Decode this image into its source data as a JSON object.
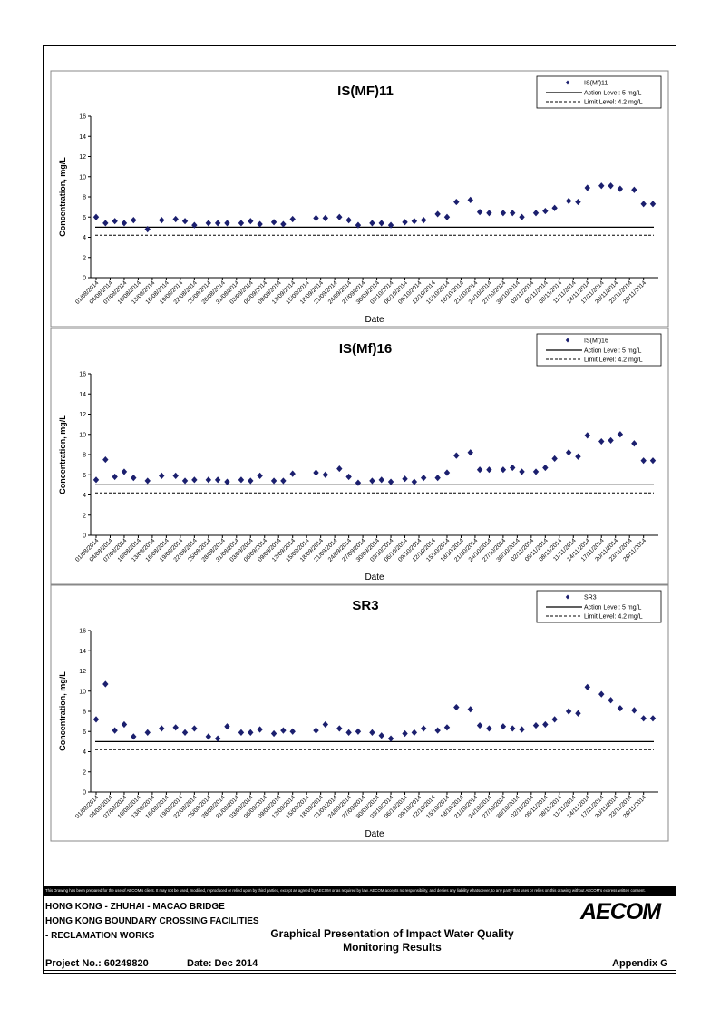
{
  "chart_data": [
    {
      "type": "scatter",
      "title": "IS(MF)11",
      "xlabel": "Date",
      "ylabel": "Concentration, mg/L",
      "ylim": [
        0,
        16
      ],
      "yticks": [
        0,
        2,
        4,
        6,
        8,
        10,
        12,
        14,
        16
      ],
      "x_tick_labels": [
        "01/08/2014",
        "04/08/2014",
        "07/08/2014",
        "10/08/2014",
        "13/08/2014",
        "16/08/2014",
        "19/08/2014",
        "22/08/2014",
        "25/08/2014",
        "28/08/2014",
        "31/08/2014",
        "03/09/2014",
        "06/09/2014",
        "09/09/2014",
        "12/09/2014",
        "15/09/2014",
        "18/09/2014",
        "21/09/2014",
        "24/09/2014",
        "27/09/2014",
        "30/09/2014",
        "03/10/2014",
        "06/10/2014",
        "09/10/2014",
        "12/10/2014",
        "15/10/2014",
        "18/10/2014",
        "21/10/2014",
        "24/10/2014",
        "27/10/2014",
        "30/10/2014",
        "02/11/2014",
        "05/11/2014",
        "08/11/2014",
        "11/11/2014",
        "14/11/2014",
        "17/11/2014",
        "20/11/2014",
        "23/11/2014",
        "26/11/2014"
      ],
      "legend": "top-right",
      "legend_items": [
        "IS(Mf)11",
        "Action Level: 5 mg/L",
        "Limit Level: 4.2 mg/L"
      ],
      "action_level": 5,
      "limit_level": 4.2,
      "series": [
        {
          "name": "IS(Mf)11",
          "x": [
            "01/08/2014",
            "03/08/2014",
            "05/08/2014",
            "07/08/2014",
            "09/08/2014",
            "12/08/2014",
            "15/08/2014",
            "18/08/2014",
            "20/08/2014",
            "22/08/2014",
            "25/08/2014",
            "27/08/2014",
            "29/08/2014",
            "01/09/2014",
            "03/09/2014",
            "05/09/2014",
            "08/09/2014",
            "10/09/2014",
            "12/09/2014",
            "17/09/2014",
            "19/09/2014",
            "22/09/2014",
            "24/09/2014",
            "26/09/2014",
            "29/09/2014",
            "01/10/2014",
            "03/10/2014",
            "06/10/2014",
            "08/10/2014",
            "10/10/2014",
            "13/10/2014",
            "15/10/2014",
            "17/10/2014",
            "20/10/2014",
            "22/10/2014",
            "24/10/2014",
            "27/10/2014",
            "29/10/2014",
            "31/10/2014",
            "03/11/2014",
            "05/11/2014",
            "07/11/2014",
            "10/11/2014",
            "12/11/2014",
            "14/11/2014",
            "17/11/2014",
            "19/11/2014",
            "21/11/2014",
            "24/11/2014",
            "26/11/2014",
            "28/11/2014"
          ],
          "y": [
            6.0,
            5.4,
            5.6,
            5.4,
            5.7,
            4.8,
            5.7,
            5.8,
            5.6,
            5.2,
            5.4,
            5.4,
            5.4,
            5.4,
            5.6,
            5.3,
            5.5,
            5.3,
            5.8,
            5.9,
            5.9,
            6.0,
            5.7,
            5.2,
            5.4,
            5.4,
            5.2,
            5.5,
            5.6,
            5.7,
            6.3,
            6.0,
            7.5,
            7.7,
            6.5,
            6.4,
            6.4,
            6.4,
            6.0,
            6.4,
            6.6,
            6.9,
            7.6,
            7.5,
            8.9,
            9.1,
            9.1,
            8.8,
            8.7,
            7.3,
            7.3
          ]
        }
      ]
    },
    {
      "type": "scatter",
      "title": "IS(Mf)16",
      "xlabel": "Date",
      "ylabel": "Concentration, mg/L",
      "ylim": [
        0,
        16
      ],
      "yticks": [
        0,
        2,
        4,
        6,
        8,
        10,
        12,
        14,
        16
      ],
      "x_tick_labels": [
        "01/08/2014",
        "04/08/2014",
        "07/08/2014",
        "10/08/2014",
        "13/08/2014",
        "16/08/2014",
        "19/08/2014",
        "22/08/2014",
        "25/08/2014",
        "28/08/2014",
        "31/08/2014",
        "03/09/2014",
        "06/09/2014",
        "09/09/2014",
        "12/09/2014",
        "15/09/2014",
        "18/09/2014",
        "21/09/2014",
        "24/09/2014",
        "27/09/2014",
        "30/09/2014",
        "03/10/2014",
        "06/10/2014",
        "09/10/2014",
        "12/10/2014",
        "15/10/2014",
        "18/10/2014",
        "21/10/2014",
        "24/10/2014",
        "27/10/2014",
        "30/10/2014",
        "02/11/2014",
        "05/11/2014",
        "08/11/2014",
        "11/11/2014",
        "14/11/2014",
        "17/11/2014",
        "20/11/2014",
        "23/11/2014",
        "26/11/2014"
      ],
      "legend": "top-right",
      "legend_items": [
        "IS(Mf)16",
        "Action Level: 5 mg/L",
        "Limit Level: 4.2 mg/L"
      ],
      "action_level": 5,
      "limit_level": 4.2,
      "series": [
        {
          "name": "IS(Mf)16",
          "x": [
            "01/08/2014",
            "03/08/2014",
            "05/08/2014",
            "07/08/2014",
            "09/08/2014",
            "12/08/2014",
            "15/08/2014",
            "18/08/2014",
            "20/08/2014",
            "22/08/2014",
            "25/08/2014",
            "27/08/2014",
            "29/08/2014",
            "01/09/2014",
            "03/09/2014",
            "05/09/2014",
            "08/09/2014",
            "10/09/2014",
            "12/09/2014",
            "17/09/2014",
            "19/09/2014",
            "22/09/2014",
            "24/09/2014",
            "26/09/2014",
            "29/09/2014",
            "01/10/2014",
            "03/10/2014",
            "06/10/2014",
            "08/10/2014",
            "10/10/2014",
            "13/10/2014",
            "15/10/2014",
            "17/10/2014",
            "20/10/2014",
            "22/10/2014",
            "24/10/2014",
            "27/10/2014",
            "29/10/2014",
            "31/10/2014",
            "03/11/2014",
            "05/11/2014",
            "07/11/2014",
            "10/11/2014",
            "12/11/2014",
            "14/11/2014",
            "17/11/2014",
            "19/11/2014",
            "21/11/2014",
            "24/11/2014",
            "26/11/2014",
            "28/11/2014"
          ],
          "y": [
            5.5,
            7.5,
            5.8,
            6.3,
            5.7,
            5.4,
            5.9,
            5.9,
            5.4,
            5.5,
            5.5,
            5.5,
            5.3,
            5.5,
            5.4,
            5.9,
            5.4,
            5.4,
            6.1,
            6.2,
            6.0,
            6.6,
            5.8,
            5.2,
            5.4,
            5.5,
            5.3,
            5.6,
            5.3,
            5.7,
            5.7,
            6.2,
            7.9,
            8.2,
            6.5,
            6.5,
            6.5,
            6.7,
            6.3,
            6.3,
            6.7,
            7.6,
            8.2,
            7.8,
            9.9,
            9.3,
            9.4,
            10.0,
            9.1,
            7.4,
            7.4
          ]
        }
      ]
    },
    {
      "type": "scatter",
      "title": "SR3",
      "xlabel": "Date",
      "ylabel": "Concentration, mg/L",
      "ylim": [
        0,
        16
      ],
      "yticks": [
        0,
        2,
        4,
        6,
        8,
        10,
        12,
        14,
        16
      ],
      "x_tick_labels": [
        "01/08/2014",
        "04/08/2014",
        "07/08/2014",
        "10/08/2014",
        "13/08/2014",
        "16/08/2014",
        "19/08/2014",
        "22/08/2014",
        "25/08/2014",
        "28/08/2014",
        "31/08/2014",
        "03/09/2014",
        "06/09/2014",
        "09/09/2014",
        "12/09/2014",
        "15/09/2014",
        "18/09/2014",
        "21/09/2014",
        "24/09/2014",
        "27/09/2014",
        "30/09/2014",
        "03/10/2014",
        "06/10/2014",
        "09/10/2014",
        "12/10/2014",
        "15/10/2014",
        "18/10/2014",
        "21/10/2014",
        "24/10/2014",
        "27/10/2014",
        "30/10/2014",
        "02/11/2014",
        "05/11/2014",
        "08/11/2014",
        "11/11/2014",
        "14/11/2014",
        "17/11/2014",
        "20/11/2014",
        "23/11/2014",
        "26/11/2014"
      ],
      "legend": "top-right",
      "legend_items": [
        "SR3",
        "Action Level: 5 mg/L",
        "Limit Level: 4.2 mg/L"
      ],
      "action_level": 5,
      "limit_level": 4.2,
      "series": [
        {
          "name": "SR3",
          "x": [
            "01/08/2014",
            "03/08/2014",
            "05/08/2014",
            "07/08/2014",
            "09/08/2014",
            "12/08/2014",
            "15/08/2014",
            "18/08/2014",
            "20/08/2014",
            "22/08/2014",
            "25/08/2014",
            "27/08/2014",
            "29/08/2014",
            "01/09/2014",
            "03/09/2014",
            "05/09/2014",
            "08/09/2014",
            "10/09/2014",
            "12/09/2014",
            "17/09/2014",
            "19/09/2014",
            "22/09/2014",
            "24/09/2014",
            "26/09/2014",
            "29/09/2014",
            "01/10/2014",
            "03/10/2014",
            "06/10/2014",
            "08/10/2014",
            "10/10/2014",
            "13/10/2014",
            "15/10/2014",
            "17/10/2014",
            "20/10/2014",
            "22/10/2014",
            "24/10/2014",
            "27/10/2014",
            "29/10/2014",
            "31/10/2014",
            "03/11/2014",
            "05/11/2014",
            "07/11/2014",
            "10/11/2014",
            "12/11/2014",
            "14/11/2014",
            "17/11/2014",
            "19/11/2014",
            "21/11/2014",
            "24/11/2014",
            "26/11/2014",
            "28/11/2014"
          ],
          "y": [
            7.2,
            10.7,
            6.1,
            6.7,
            5.5,
            5.9,
            6.3,
            6.4,
            5.9,
            6.3,
            5.5,
            5.3,
            6.5,
            5.9,
            5.9,
            6.2,
            5.8,
            6.1,
            6.0,
            6.1,
            6.7,
            6.3,
            5.9,
            6.0,
            5.9,
            5.6,
            5.3,
            5.8,
            5.9,
            6.3,
            6.1,
            6.4,
            8.4,
            8.2,
            6.6,
            6.3,
            6.5,
            6.3,
            6.2,
            6.6,
            6.7,
            7.2,
            8.0,
            7.8,
            10.4,
            9.7,
            9.1,
            8.3,
            8.1,
            7.3,
            7.3
          ]
        }
      ]
    }
  ],
  "footer": {
    "disclaimer": "This Drawing has been prepared for the use of AECOM's client. It may not be used, modified, reproduced or relied upon by third parties, except as agreed by AECOM or as required by law. AECOM accepts no responsibility, and denies any liability whatsoever, to any party that uses or relies on this drawing without AECOM's express written consent.",
    "project_line1": "HONG KONG - ZHUHAI - MACAO BRIDGE",
    "project_line2": "HONG KONG BOUNDARY CROSSING FACILITIES",
    "project_line3": "- RECLAMATION WORKS",
    "drawing_title_line1": "Graphical Presentation of Impact Water Quality",
    "drawing_title_line2": "Monitoring Results",
    "project_no": "Project No.: 60249820",
    "date": "Date: Dec 2014",
    "appendix": "Appendix G",
    "logo": "AECOM"
  }
}
